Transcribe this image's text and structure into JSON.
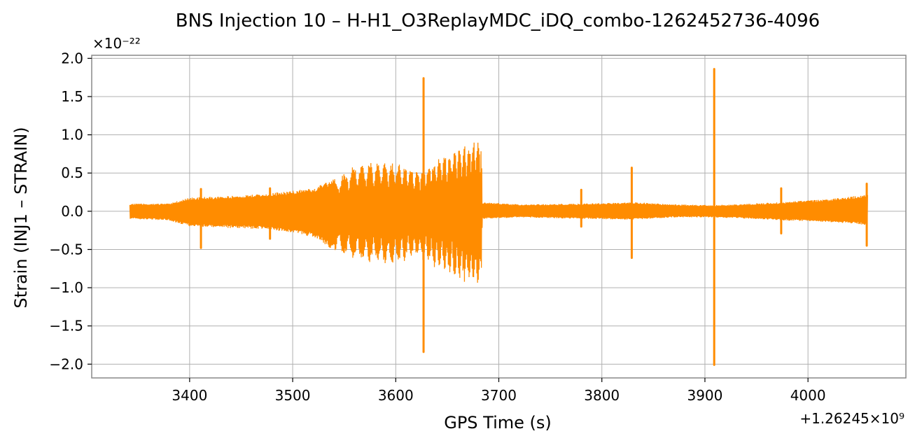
{
  "chart_data": {
    "type": "line",
    "title": "BNS Injection 10 – H-H1_O3ReplayMDC_iDQ_combo-1262452736-4096",
    "xlabel": "GPS Time (s)",
    "ylabel": "Strain (INJ1 – STRAIN)",
    "x_offset_label": "+1.26245×10⁹",
    "y_scale_label": "×10⁻²²",
    "xlim": [
      3305,
      4095
    ],
    "ylim": [
      -2.18,
      2.04
    ],
    "x_ticks": [
      3400,
      3500,
      3600,
      3700,
      3800,
      3900,
      4000
    ],
    "x_tick_labels": [
      "3400",
      "3500",
      "3600",
      "3700",
      "3800",
      "3900",
      "4000"
    ],
    "y_ticks": [
      -2.0,
      -1.5,
      -1.0,
      -0.5,
      0.0,
      0.5,
      1.0,
      1.5,
      2.0
    ],
    "y_tick_labels": [
      "−2.0",
      "−1.5",
      "−1.0",
      "−0.5",
      "0.0",
      "0.5",
      "1.0",
      "1.5",
      "2.0"
    ],
    "grid": true,
    "line_color": "#ff8c00",
    "series": [
      {
        "name": "",
        "envelope": {
          "x": [
            3342,
            3380,
            3400,
            3440,
            3480,
            3520,
            3540,
            3560,
            3580,
            3600,
            3620,
            3640,
            3660,
            3683,
            3684,
            3720,
            3780,
            3830,
            3870,
            3908,
            3930,
            3975,
            4020,
            4058
          ],
          "upper": [
            0.1,
            0.1,
            0.18,
            0.2,
            0.24,
            0.3,
            0.42,
            0.62,
            0.66,
            0.66,
            0.55,
            0.7,
            0.85,
            1.0,
            0.12,
            0.09,
            0.1,
            0.12,
            0.09,
            0.08,
            0.09,
            0.12,
            0.16,
            0.22
          ],
          "lower": [
            -0.1,
            -0.12,
            -0.2,
            -0.22,
            -0.24,
            -0.34,
            -0.52,
            -0.66,
            -0.68,
            -0.72,
            -0.6,
            -0.76,
            -0.9,
            -1.0,
            -0.1,
            -0.08,
            -0.1,
            -0.11,
            -0.08,
            -0.08,
            -0.09,
            -0.12,
            -0.14,
            -0.18
          ]
        },
        "spikes": [
          {
            "x": 3411,
            "high": 0.29,
            "low": -0.48
          },
          {
            "x": 3478,
            "high": 0.3,
            "low": -0.36
          },
          {
            "x": 3627,
            "high": 1.74,
            "low": -1.84
          },
          {
            "x": 3780,
            "high": 0.28,
            "low": -0.2
          },
          {
            "x": 3829,
            "high": 0.57,
            "low": -0.61
          },
          {
            "x": 3909,
            "high": 1.86,
            "low": -2.01
          },
          {
            "x": 3974,
            "high": 0.3,
            "low": -0.29
          },
          {
            "x": 4057,
            "high": 0.36,
            "low": -0.45
          }
        ]
      }
    ]
  }
}
